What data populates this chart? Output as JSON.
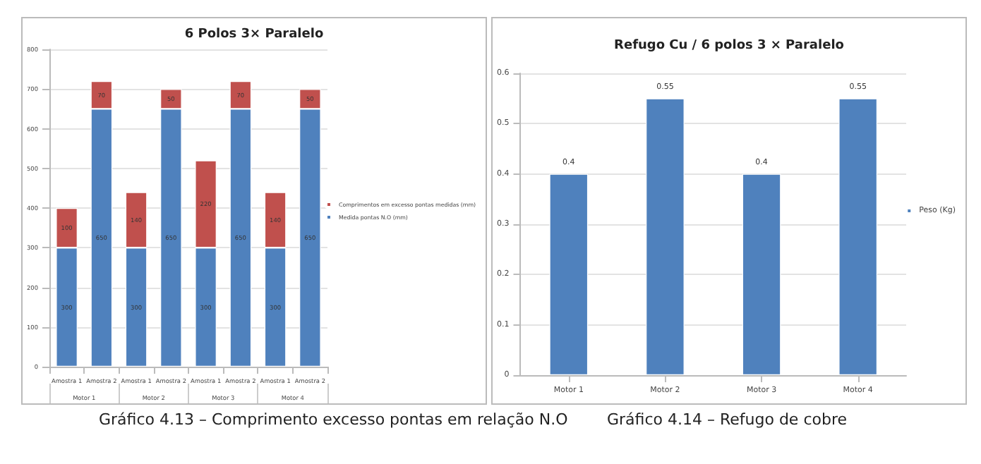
{
  "chart_data": [
    {
      "type": "bar",
      "title": "6 Polos 3× Paralelo",
      "categories": [
        "Amostra 1",
        "Amostra 2",
        "Amostra 1",
        "Amostra 2",
        "Amostra 1",
        "Amostra 2",
        "Amostra 1",
        "Amostra 2"
      ],
      "stacked": true,
      "series": [
        {
          "name": "Medida pontas N.O (mm)",
          "color": "#4f81bd",
          "values": [
            300,
            650,
            300,
            650,
            300,
            650,
            300,
            650
          ]
        },
        {
          "name": "Comprimentos em excesso pontas medidas (mm)",
          "color": "#c0504d",
          "values": [
            100,
            70,
            140,
            50,
            220,
            70,
            140,
            50
          ]
        }
      ],
      "ylim": [
        0,
        800
      ],
      "yticks": [
        0,
        100,
        200,
        300,
        400,
        500,
        600,
        700,
        800
      ],
      "grid": "y",
      "legend": "right",
      "data_labels": true,
      "annotations": [
        "Motor 1",
        "Motor 2",
        "Motor 3",
        "Motor 4",
        "Gráfico 4.13 – Comprimento excesso pontas em relação N.O"
      ]
    },
    {
      "type": "bar",
      "title": "Refugo Cu / 6 polos 3 × Paralelo",
      "categories": [
        "Motor 1",
        "Motor 2",
        "Motor 3",
        "Motor 4"
      ],
      "series": [
        {
          "name": "Peso (Kg)",
          "color": "#4f81bd",
          "values": [
            0.4,
            0.55,
            0.4,
            0.55
          ]
        }
      ],
      "ylim": [
        0,
        0.6
      ],
      "yticks": [
        0,
        0.1,
        0.2,
        0.3,
        0.4,
        0.5,
        0.6
      ],
      "grid": "y",
      "legend": "right",
      "data_labels": true,
      "annotations": [
        "Gráfico 4.14 – Refugo de cobre"
      ]
    }
  ]
}
